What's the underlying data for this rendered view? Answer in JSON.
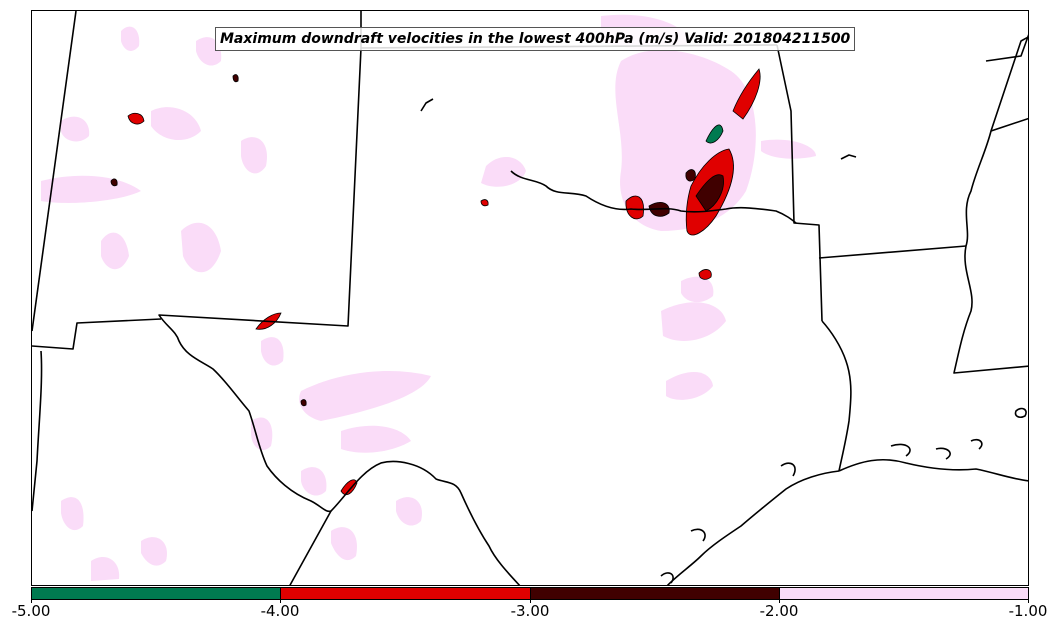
{
  "title": "Maximum downdraft velocities in the lowest 400hPa (m/s) Valid: 201804211500",
  "colorbar": {
    "segments": [
      {
        "color": "#007a50",
        "from": -5.0,
        "to": -4.0
      },
      {
        "color": "#e00000",
        "from": -4.0,
        "to": -3.0
      },
      {
        "color": "#400000",
        "from": -3.0,
        "to": -2.0
      },
      {
        "color": "#fadcf8",
        "from": -2.0,
        "to": -1.0
      }
    ],
    "tick_labels": [
      "-5.00",
      "-4.00",
      "-3.00",
      "-2.00",
      "-1.00"
    ]
  },
  "map": {
    "region": "south-central-us",
    "border_color": "#000000",
    "field_colors": {
      "weak": "#fadcf8",
      "moderate": "#e00000",
      "strong": "#400000",
      "extreme": "#007a50"
    }
  }
}
